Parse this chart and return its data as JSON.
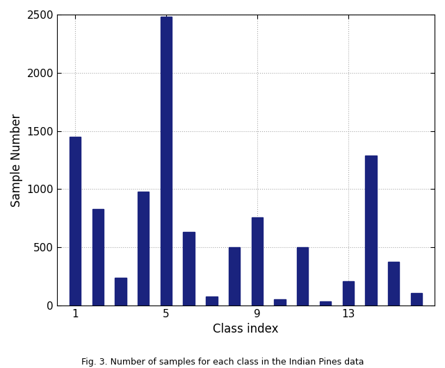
{
  "categories": [
    1,
    2,
    3,
    4,
    5,
    6,
    7,
    8,
    9,
    10,
    11,
    12,
    13,
    14,
    15,
    16
  ],
  "values": [
    1450,
    830,
    240,
    980,
    2480,
    630,
    75,
    500,
    755,
    50,
    500,
    35,
    205,
    1290,
    375,
    105
  ],
  "bar_color": "#1a237e",
  "xlabel": "Class index",
  "ylabel": "Sample Number",
  "ylim": [
    0,
    2500
  ],
  "yticks": [
    0,
    500,
    1000,
    1500,
    2000,
    2500
  ],
  "xticks": [
    1,
    5,
    9,
    13
  ],
  "caption": "Fig. 3. Number of samples for each class in the Indian Pines data"
}
